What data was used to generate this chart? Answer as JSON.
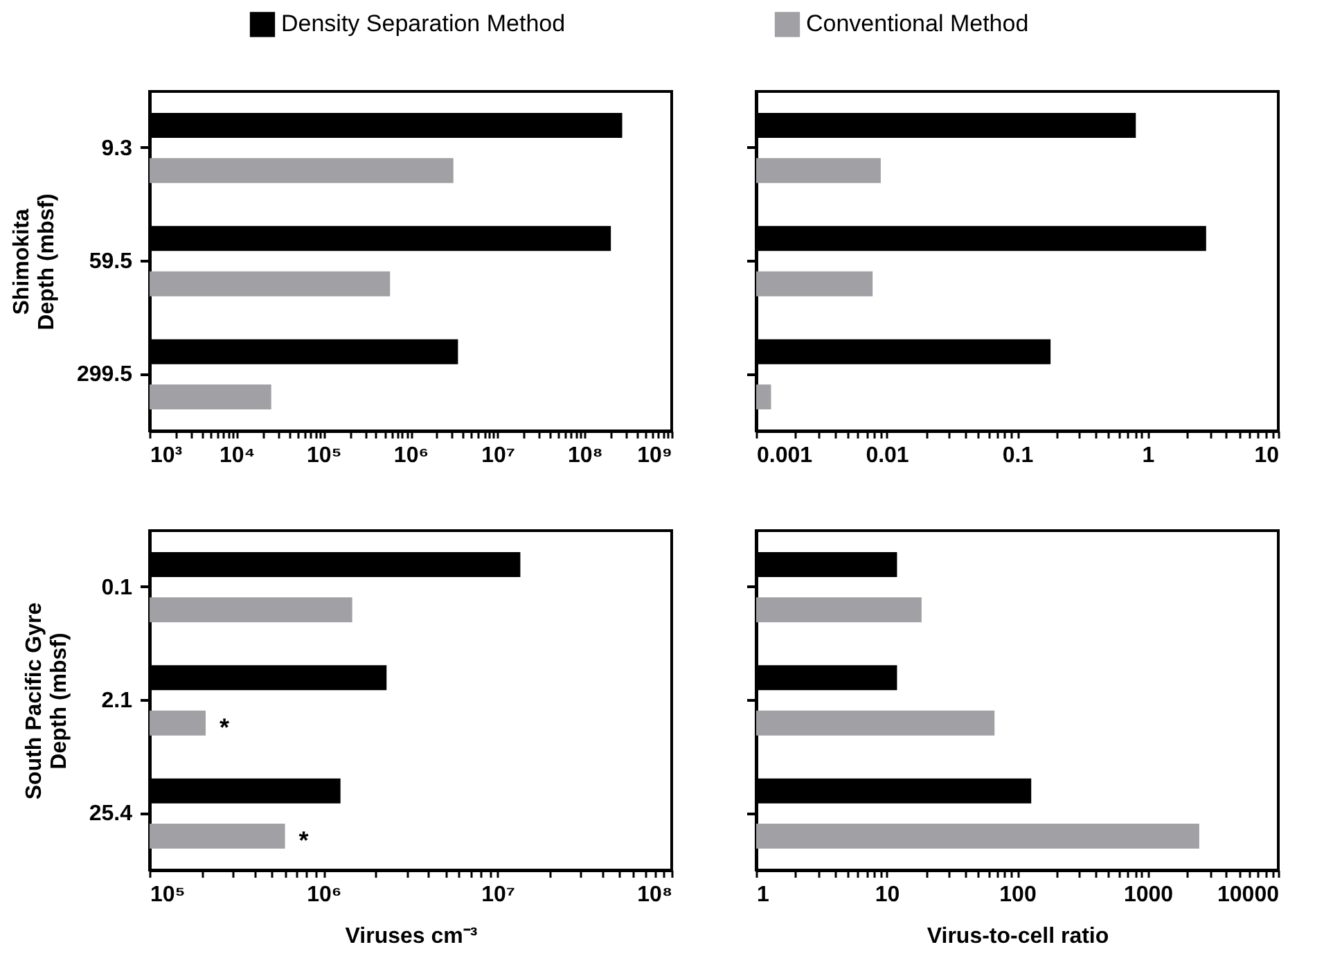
{
  "chart_data": [
    {
      "type": "bar",
      "orientation": "horizontal",
      "log": "x",
      "legend": "top",
      "ylabel": "Shimokita\nDepth (mbsf)",
      "categories": [
        "9.3",
        "59.5",
        "299.5"
      ],
      "series": [
        {
          "name": "Density Separation Method",
          "color": "#000000",
          "values": [
            270000000,
            200000000,
            3500000
          ]
        },
        {
          "name": "Conventional Method",
          "color": "#a0a0a5",
          "values": [
            3100000,
            580000,
            25000
          ]
        }
      ],
      "xlim": [
        1000,
        1000000000
      ],
      "xticks": [
        {
          "value": 1000,
          "label": "10³"
        },
        {
          "value": 2000,
          "label": null
        },
        {
          "value": 3000,
          "label": null
        },
        {
          "value": 4000,
          "label": null
        },
        {
          "value": 5000,
          "label": null
        },
        {
          "value": 6000,
          "label": null
        },
        {
          "value": 7000,
          "label": null
        },
        {
          "value": 8000,
          "label": null
        },
        {
          "value": 9000,
          "label": null
        },
        {
          "value": 10000,
          "label": "10⁴"
        },
        {
          "value": 20000,
          "label": null
        },
        {
          "value": 30000,
          "label": null
        },
        {
          "value": 40000,
          "label": null
        },
        {
          "value": 50000,
          "label": null
        },
        {
          "value": 60000,
          "label": null
        },
        {
          "value": 70000,
          "label": null
        },
        {
          "value": 80000,
          "label": null
        },
        {
          "value": 90000,
          "label": null
        },
        {
          "value": 100000,
          "label": "10⁵"
        },
        {
          "value": 200000,
          "label": null
        },
        {
          "value": 300000,
          "label": null
        },
        {
          "value": 400000,
          "label": null
        },
        {
          "value": 500000,
          "label": null
        },
        {
          "value": 600000,
          "label": null
        },
        {
          "value": 700000,
          "label": null
        },
        {
          "value": 800000,
          "label": null
        },
        {
          "value": 900000,
          "label": null
        },
        {
          "value": 1000000,
          "label": "10⁶"
        },
        {
          "value": 2000000,
          "label": null
        },
        {
          "value": 3000000,
          "label": null
        },
        {
          "value": 4000000,
          "label": null
        },
        {
          "value": 5000000,
          "label": null
        },
        {
          "value": 6000000,
          "label": null
        },
        {
          "value": 7000000,
          "label": null
        },
        {
          "value": 8000000,
          "label": null
        },
        {
          "value": 9000000,
          "label": null
        },
        {
          "value": 10000000,
          "label": "10⁷"
        },
        {
          "value": 20000000,
          "label": null
        },
        {
          "value": 30000000,
          "label": null
        },
        {
          "value": 40000000,
          "label": null
        },
        {
          "value": 50000000,
          "label": null
        },
        {
          "value": 60000000,
          "label": null
        },
        {
          "value": 70000000,
          "label": null
        },
        {
          "value": 80000000,
          "label": null
        },
        {
          "value": 90000000,
          "label": null
        },
        {
          "value": 100000000,
          "label": "10⁸"
        },
        {
          "value": 200000000,
          "label": null
        },
        {
          "value": 300000000,
          "label": null
        },
        {
          "value": 400000000,
          "label": null
        },
        {
          "value": 500000000,
          "label": null
        },
        {
          "value": 600000000,
          "label": null
        },
        {
          "value": 700000000,
          "label": null
        },
        {
          "value": 800000000,
          "label": null
        },
        {
          "value": 900000000,
          "label": null
        },
        {
          "value": 1000000000,
          "label": "10⁹"
        }
      ]
    },
    {
      "type": "bar",
      "orientation": "horizontal",
      "log": "x",
      "tick_labels": "x",
      "categories": [
        "9.3",
        "59.5",
        "299.5"
      ],
      "series": [
        {
          "color": "#000000",
          "values": [
            0.81,
            2.8,
            0.18
          ]
        },
        {
          "color": "#a0a0a5",
          "values": [
            0.009,
            0.0078,
            0.0013
          ]
        }
      ],
      "xlim": [
        0.001,
        10
      ],
      "xticks": [
        0.001,
        {
          "value": 0.002,
          "label": null
        },
        {
          "value": 0.003,
          "label": null
        },
        {
          "value": 0.004,
          "label": null
        },
        {
          "value": 0.005,
          "label": null
        },
        {
          "value": 0.006,
          "label": null
        },
        {
          "value": 0.007,
          "label": null
        },
        {
          "value": 0.008,
          "label": null
        },
        {
          "value": 0.009,
          "label": null
        },
        0.01,
        {
          "value": 0.02,
          "label": null
        },
        {
          "value": 0.03,
          "label": null
        },
        {
          "value": 0.04,
          "label": null
        },
        {
          "value": 0.05,
          "label": null
        },
        {
          "value": 0.06,
          "label": null
        },
        {
          "value": 0.07,
          "label": null
        },
        {
          "value": 0.08,
          "label": null
        },
        {
          "value": 0.09,
          "label": null
        },
        0.1,
        {
          "value": 0.2,
          "label": null
        },
        {
          "value": 0.3,
          "label": null
        },
        {
          "value": 0.4,
          "label": null
        },
        {
          "value": 0.5,
          "label": null
        },
        {
          "value": 0.6,
          "label": null
        },
        {
          "value": 0.7,
          "label": null
        },
        {
          "value": 0.8,
          "label": null
        },
        {
          "value": 0.9,
          "label": null
        },
        1,
        {
          "value": 2,
          "label": null
        },
        {
          "value": 3,
          "label": null
        },
        {
          "value": 4,
          "label": null
        },
        {
          "value": 5,
          "label": null
        },
        {
          "value": 6,
          "label": null
        },
        {
          "value": 7,
          "label": null
        },
        {
          "value": 8,
          "label": null
        },
        {
          "value": 9,
          "label": null
        },
        10
      ]
    },
    {
      "type": "bar",
      "orientation": "horizontal",
      "log": "x",
      "ylabel": "South Pacific Gyre\nDepth (mbsf)",
      "xlabel": "Viruses cm⁻³",
      "categories": [
        "0.1",
        "2.1",
        "25.4"
      ],
      "series": [
        {
          "color": "#000000",
          "values": [
            13500000,
            2300000,
            1250000
          ]
        },
        {
          "color": "#a0a0a5",
          "values": [
            1460000,
            210000,
            600000
          ],
          "value_labels": [
            null,
            "*",
            "*"
          ]
        }
      ],
      "xlim": [
        100000,
        100000000
      ],
      "xticks": [
        {
          "value": 100000,
          "label": "10⁵"
        },
        {
          "value": 200000,
          "label": null
        },
        {
          "value": 300000,
          "label": null
        },
        {
          "value": 400000,
          "label": null
        },
        {
          "value": 500000,
          "label": null
        },
        {
          "value": 600000,
          "label": null
        },
        {
          "value": 700000,
          "label": null
        },
        {
          "value": 800000,
          "label": null
        },
        {
          "value": 900000,
          "label": null
        },
        {
          "value": 1000000,
          "label": "10⁶"
        },
        {
          "value": 2000000,
          "label": null
        },
        {
          "value": 3000000,
          "label": null
        },
        {
          "value": 4000000,
          "label": null
        },
        {
          "value": 5000000,
          "label": null
        },
        {
          "value": 6000000,
          "label": null
        },
        {
          "value": 7000000,
          "label": null
        },
        {
          "value": 8000000,
          "label": null
        },
        {
          "value": 9000000,
          "label": null
        },
        {
          "value": 10000000,
          "label": "10⁷"
        },
        {
          "value": 20000000,
          "label": null
        },
        {
          "value": 30000000,
          "label": null
        },
        {
          "value": 40000000,
          "label": null
        },
        {
          "value": 50000000,
          "label": null
        },
        {
          "value": 60000000,
          "label": null
        },
        {
          "value": 70000000,
          "label": null
        },
        {
          "value": 80000000,
          "label": null
        },
        {
          "value": 90000000,
          "label": null
        },
        {
          "value": 100000000,
          "label": "10⁸"
        }
      ]
    },
    {
      "type": "bar",
      "orientation": "horizontal",
      "log": "x",
      "tick_labels": "x",
      "xlabel": "Virus-to-cell ratio",
      "categories": [
        "0.1",
        "2.1",
        "25.4"
      ],
      "series": [
        {
          "color": "#000000",
          "values": [
            12,
            12,
            128
          ]
        },
        {
          "color": "#a0a0a5",
          "values": [
            18.5,
            67,
            2480
          ]
        }
      ],
      "xlim": [
        1,
        10000
      ],
      "xticks": [
        1,
        {
          "value": 2,
          "label": null
        },
        {
          "value": 3,
          "label": null
        },
        {
          "value": 4,
          "label": null
        },
        {
          "value": 5,
          "label": null
        },
        {
          "value": 6,
          "label": null
        },
        {
          "value": 7,
          "label": null
        },
        {
          "value": 8,
          "label": null
        },
        {
          "value": 9,
          "label": null
        },
        10,
        {
          "value": 20,
          "label": null
        },
        {
          "value": 30,
          "label": null
        },
        {
          "value": 40,
          "label": null
        },
        {
          "value": 50,
          "label": null
        },
        {
          "value": 60,
          "label": null
        },
        {
          "value": 70,
          "label": null
        },
        {
          "value": 80,
          "label": null
        },
        {
          "value": 90,
          "label": null
        },
        100,
        {
          "value": 200,
          "label": null
        },
        {
          "value": 300,
          "label": null
        },
        {
          "value": 400,
          "label": null
        },
        {
          "value": 500,
          "label": null
        },
        {
          "value": 600,
          "label": null
        },
        {
          "value": 700,
          "label": null
        },
        {
          "value": 800,
          "label": null
        },
        {
          "value": 900,
          "label": null
        },
        1000,
        {
          "value": 2000,
          "label": null
        },
        {
          "value": 3000,
          "label": null
        },
        {
          "value": 4000,
          "label": null
        },
        {
          "value": 5000,
          "label": null
        },
        {
          "value": 6000,
          "label": null
        },
        {
          "value": 7000,
          "label": null
        },
        {
          "value": 8000,
          "label": null
        },
        {
          "value": 9000,
          "label": null
        },
        10000
      ]
    }
  ]
}
